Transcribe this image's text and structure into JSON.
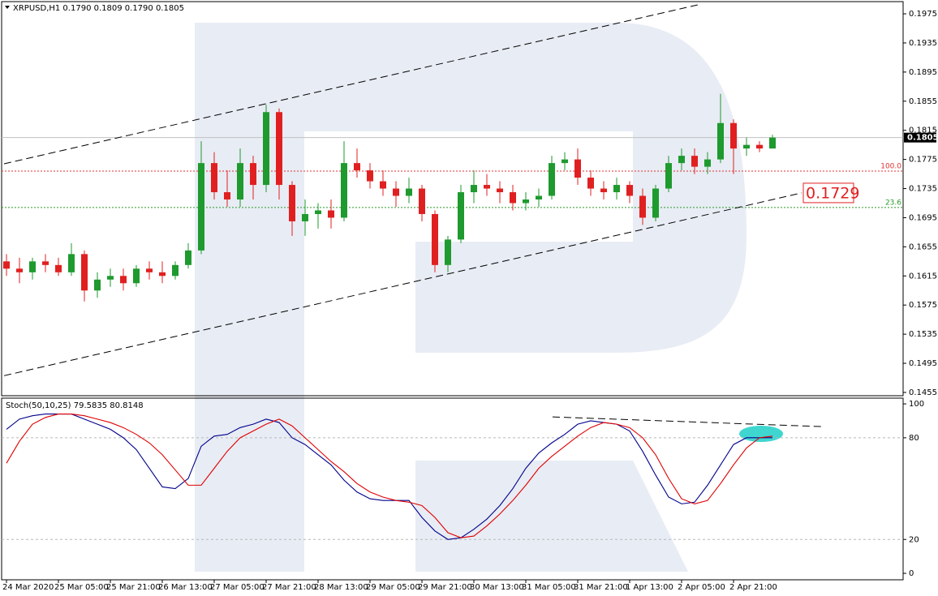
{
  "chart_data": [
    {
      "type": "candlestick",
      "title": "XRPUSD,H1  0.1790 0.1809 0.1790 0.1805",
      "categories": [
        "24 Mar 2020",
        null,
        null,
        null,
        "25 Mar 05:00",
        null,
        null,
        null,
        "25 Mar 21:00",
        null,
        null,
        null,
        "26 Mar 13:00",
        null,
        null,
        null,
        "27 Mar 05:00",
        null,
        null,
        null,
        "27 Mar 21:00",
        null,
        null,
        null,
        "28 Mar 13:00",
        null,
        null,
        null,
        "29 Mar 05:00",
        null,
        null,
        null,
        "29 Mar 21:00",
        null,
        null,
        null,
        "30 Mar 13:00",
        null,
        null,
        null,
        "31 Mar 05:00",
        null,
        null,
        null,
        "31 Mar 21:00",
        null,
        null,
        null,
        "1 Apr 13:00",
        null,
        null,
        null,
        "2 Apr 05:00",
        null,
        null,
        null,
        "2 Apr 21:00",
        null,
        null,
        null
      ],
      "open": [
        0.1635,
        0.1625,
        0.162,
        0.1635,
        0.163,
        0.162,
        0.1645,
        0.1595,
        0.161,
        0.1615,
        0.1605,
        0.1625,
        0.162,
        0.1615,
        0.163,
        0.165,
        0.177,
        0.173,
        0.172,
        0.177,
        0.174,
        0.184,
        0.174,
        0.169,
        0.17,
        0.1705,
        0.1695,
        0.177,
        0.176,
        0.1745,
        0.1735,
        0.1725,
        0.1735,
        0.17,
        0.163,
        0.1665,
        0.173,
        0.174,
        0.1735,
        0.173,
        0.1715,
        0.172,
        0.1725,
        0.177,
        0.1775,
        0.175,
        0.1735,
        0.173,
        0.174,
        0.1725,
        0.1695,
        0.1735,
        0.177,
        0.178,
        0.1765,
        0.1775,
        0.1825,
        0.179,
        0.1795,
        0.179
      ],
      "high": [
        0.1645,
        0.164,
        0.164,
        0.1645,
        0.164,
        0.166,
        0.165,
        0.162,
        0.1625,
        0.1625,
        0.163,
        0.1635,
        0.1635,
        0.1635,
        0.166,
        0.18,
        0.1785,
        0.176,
        0.179,
        0.178,
        0.185,
        0.1845,
        0.1745,
        0.172,
        0.1715,
        0.172,
        0.18,
        0.179,
        0.177,
        0.176,
        0.1745,
        0.175,
        0.174,
        0.1705,
        0.167,
        0.174,
        0.176,
        0.1755,
        0.1745,
        0.174,
        0.173,
        0.1735,
        0.178,
        0.1785,
        0.179,
        0.176,
        0.1745,
        0.175,
        0.1745,
        0.1735,
        0.174,
        0.178,
        0.179,
        0.179,
        0.1785,
        0.1865,
        0.183,
        0.1805,
        0.18,
        0.1809
      ],
      "low": [
        0.1615,
        0.1605,
        0.161,
        0.162,
        0.1615,
        0.1615,
        0.158,
        0.1585,
        0.16,
        0.1595,
        0.16,
        0.161,
        0.1605,
        0.161,
        0.1625,
        0.1645,
        0.172,
        0.171,
        0.171,
        0.172,
        0.173,
        0.172,
        0.167,
        0.167,
        0.168,
        0.168,
        0.169,
        0.175,
        0.1735,
        0.1725,
        0.171,
        0.1715,
        0.169,
        0.162,
        0.162,
        0.166,
        0.1715,
        0.1725,
        0.1715,
        0.1705,
        0.1705,
        0.171,
        0.172,
        0.176,
        0.174,
        0.1725,
        0.172,
        0.172,
        0.1715,
        0.1685,
        0.169,
        0.173,
        0.176,
        0.1755,
        0.1755,
        0.177,
        0.1755,
        0.178,
        0.1785,
        0.179
      ],
      "close": [
        0.1625,
        0.162,
        0.1635,
        0.163,
        0.162,
        0.1645,
        0.1595,
        0.161,
        0.1615,
        0.1605,
        0.1625,
        0.162,
        0.1615,
        0.163,
        0.165,
        0.177,
        0.173,
        0.172,
        0.177,
        0.174,
        0.184,
        0.174,
        0.169,
        0.17,
        0.1705,
        0.1695,
        0.177,
        0.176,
        0.1745,
        0.1735,
        0.1725,
        0.1735,
        0.17,
        0.163,
        0.1665,
        0.173,
        0.174,
        0.1735,
        0.173,
        0.1715,
        0.172,
        0.1725,
        0.177,
        0.1775,
        0.175,
        0.1735,
        0.173,
        0.174,
        0.1725,
        0.1695,
        0.1735,
        0.177,
        0.178,
        0.1765,
        0.1775,
        0.1825,
        0.179,
        0.1795,
        0.179,
        0.1805
      ],
      "up_color": "#1e9a2e",
      "down_color": "#e02020",
      "ylim": [
        0.14505,
        0.19884
      ],
      "yticks": [
        0.1975,
        0.1935,
        0.1895,
        0.1855,
        0.1815,
        0.1775,
        0.1735,
        0.1695,
        0.1655,
        0.1615,
        0.1575,
        0.1535,
        0.1495,
        0.1455
      ],
      "current_price": 0.1805,
      "levels": [
        {
          "label": "100.0",
          "value": 0.1759,
          "color": "#e03030"
        },
        {
          "label": "23.6",
          "value": 0.1709,
          "color": "#2a9a2a"
        }
      ],
      "trendlines": [
        {
          "x": [
            0,
            53.4
          ],
          "y": [
            0.1769,
            0.1988
          ]
        },
        {
          "x": [
            0,
            61.25
          ],
          "y": [
            0.1478,
            0.1729
          ]
        }
      ]
    },
    {
      "type": "line",
      "title": "Stoch(50,10,25) 79.5835 80.8148",
      "series": [
        {
          "color": "#00008b",
          "values": [
            85,
            91,
            93,
            94,
            94,
            94,
            91,
            88,
            85,
            80,
            73,
            62,
            51,
            50,
            56,
            75,
            81,
            82,
            86,
            88,
            91,
            89,
            80,
            76,
            70,
            64,
            55,
            48,
            44,
            43,
            43,
            43,
            33,
            25,
            20,
            21,
            26,
            32,
            40,
            50,
            62,
            71,
            77,
            82,
            88,
            90,
            89,
            88,
            84,
            72,
            58,
            45,
            41,
            42,
            52,
            64,
            76,
            80,
            80,
            80
          ]
        },
        {
          "color": "#e00000",
          "values": [
            65,
            78,
            88,
            92,
            94,
            94,
            93,
            91,
            89,
            86,
            82,
            77,
            70,
            61,
            52,
            52,
            62,
            72,
            80,
            84,
            88,
            91,
            87,
            80,
            73,
            66,
            60,
            53,
            48,
            45,
            43,
            42,
            40,
            33,
            24,
            21,
            22,
            28,
            35,
            43,
            52,
            62,
            69,
            75,
            81,
            86,
            89,
            88,
            86,
            80,
            70,
            56,
            44,
            41,
            43,
            53,
            64,
            74,
            80,
            81
          ]
        }
      ],
      "ylim": [
        -3.8,
        102.9
      ],
      "yticks": [
        100,
        80,
        20,
        0
      ],
      "levels": [
        80,
        20
      ],
      "trendline": {
        "x": [
          42.06,
          62.8
        ],
        "y": [
          92.3,
          86.6
        ]
      }
    }
  ]
}
